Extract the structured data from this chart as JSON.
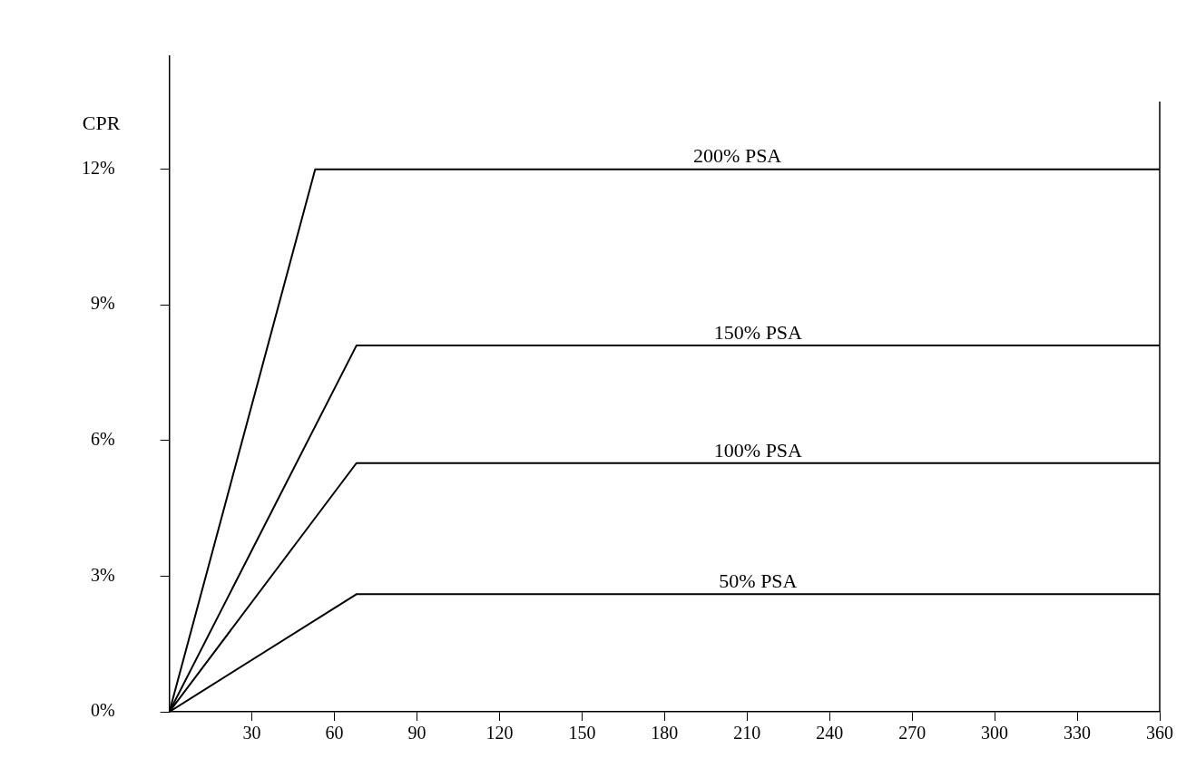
{
  "chart_data": {
    "type": "line",
    "ylabel": "CPR",
    "series": [
      {
        "name": "200% PSA",
        "color": "#000000",
        "x": [
          0,
          53,
          360
        ],
        "values": [
          0,
          12,
          12
        ]
      },
      {
        "name": "150% PSA",
        "color": "#000000",
        "x": [
          0,
          68,
          360
        ],
        "values": [
          0,
          8.1,
          8.1
        ]
      },
      {
        "name": "100% PSA",
        "color": "#000000",
        "x": [
          0,
          68,
          360
        ],
        "values": [
          0,
          5.5,
          5.5
        ]
      },
      {
        "name": "50% PSA",
        "color": "#000000",
        "x": [
          0,
          68,
          360
        ],
        "values": [
          0,
          2.6,
          2.6
        ]
      }
    ],
    "xlim": [
      0,
      360
    ],
    "xticks": [
      30,
      60,
      90,
      120,
      150,
      180,
      210,
      240,
      270,
      300,
      330,
      360
    ],
    "ylim": [
      0,
      14.5
    ],
    "yticks": [
      {
        "value": 0,
        "label": "0%"
      },
      {
        "value": 3,
        "label": "3%"
      },
      {
        "value": 6,
        "label": "6%"
      },
      {
        "value": 9,
        "label": "9%"
      },
      {
        "value": 12,
        "label": "12%"
      }
    ],
    "grid": false,
    "legend": false,
    "marker": "none",
    "line_style": "solid"
  }
}
